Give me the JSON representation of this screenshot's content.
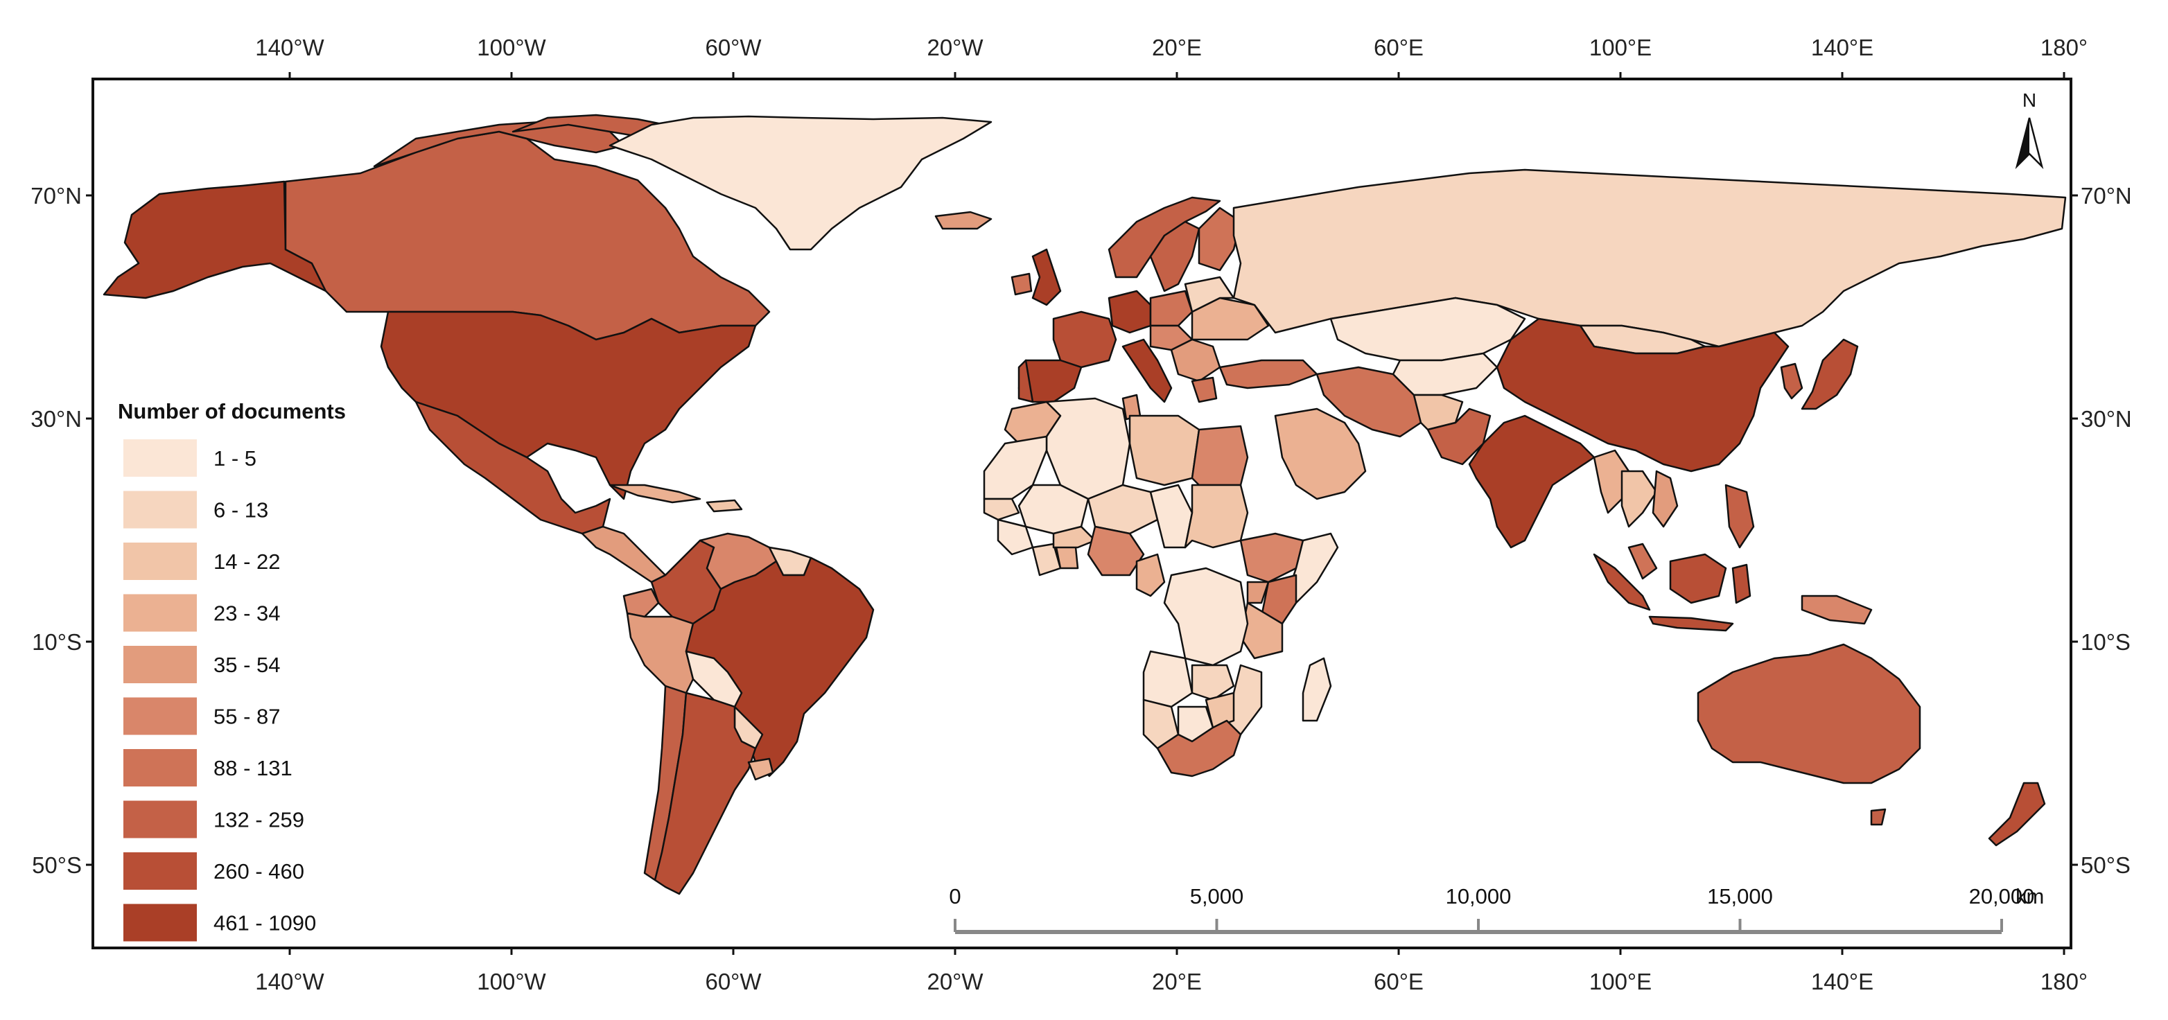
{
  "map": {
    "longitude_ticks": [
      "140°W",
      "100°W",
      "60°W",
      "20°W",
      "20°E",
      "60°E",
      "100°E",
      "140°E",
      "180°"
    ],
    "latitude_ticks_left": [
      "70°N",
      "30°N",
      "10°S",
      "50°S"
    ],
    "latitude_ticks_right": [
      "70°N",
      "30°N",
      "10°S",
      "50°S"
    ],
    "north_arrow_label": "N",
    "scale_bar": {
      "labels": [
        "0",
        "5,000",
        "10,000",
        "15,000",
        "20,000"
      ],
      "unit": "km"
    }
  },
  "legend": {
    "title": "Number of documents",
    "classes": [
      {
        "label": "1 - 5",
        "color": "#fbe6d6"
      },
      {
        "label": "6 - 13",
        "color": "#f6d6bf"
      },
      {
        "label": "14 - 22",
        "color": "#f1c5a8"
      },
      {
        "label": "23 - 34",
        "color": "#ebb192"
      },
      {
        "label": "35 - 54",
        "color": "#e29c7d"
      },
      {
        "label": "55 - 87",
        "color": "#d9866a"
      },
      {
        "label": "88 - 131",
        "color": "#cf7357"
      },
      {
        "label": "132 - 259",
        "color": "#c46147"
      },
      {
        "label": "260 - 460",
        "color": "#b84f36"
      },
      {
        "label": "461 - 1090",
        "color": "#aa3f27"
      }
    ]
  },
  "colors": {
    "no_data": "#ffffff",
    "border": "#111111"
  }
}
